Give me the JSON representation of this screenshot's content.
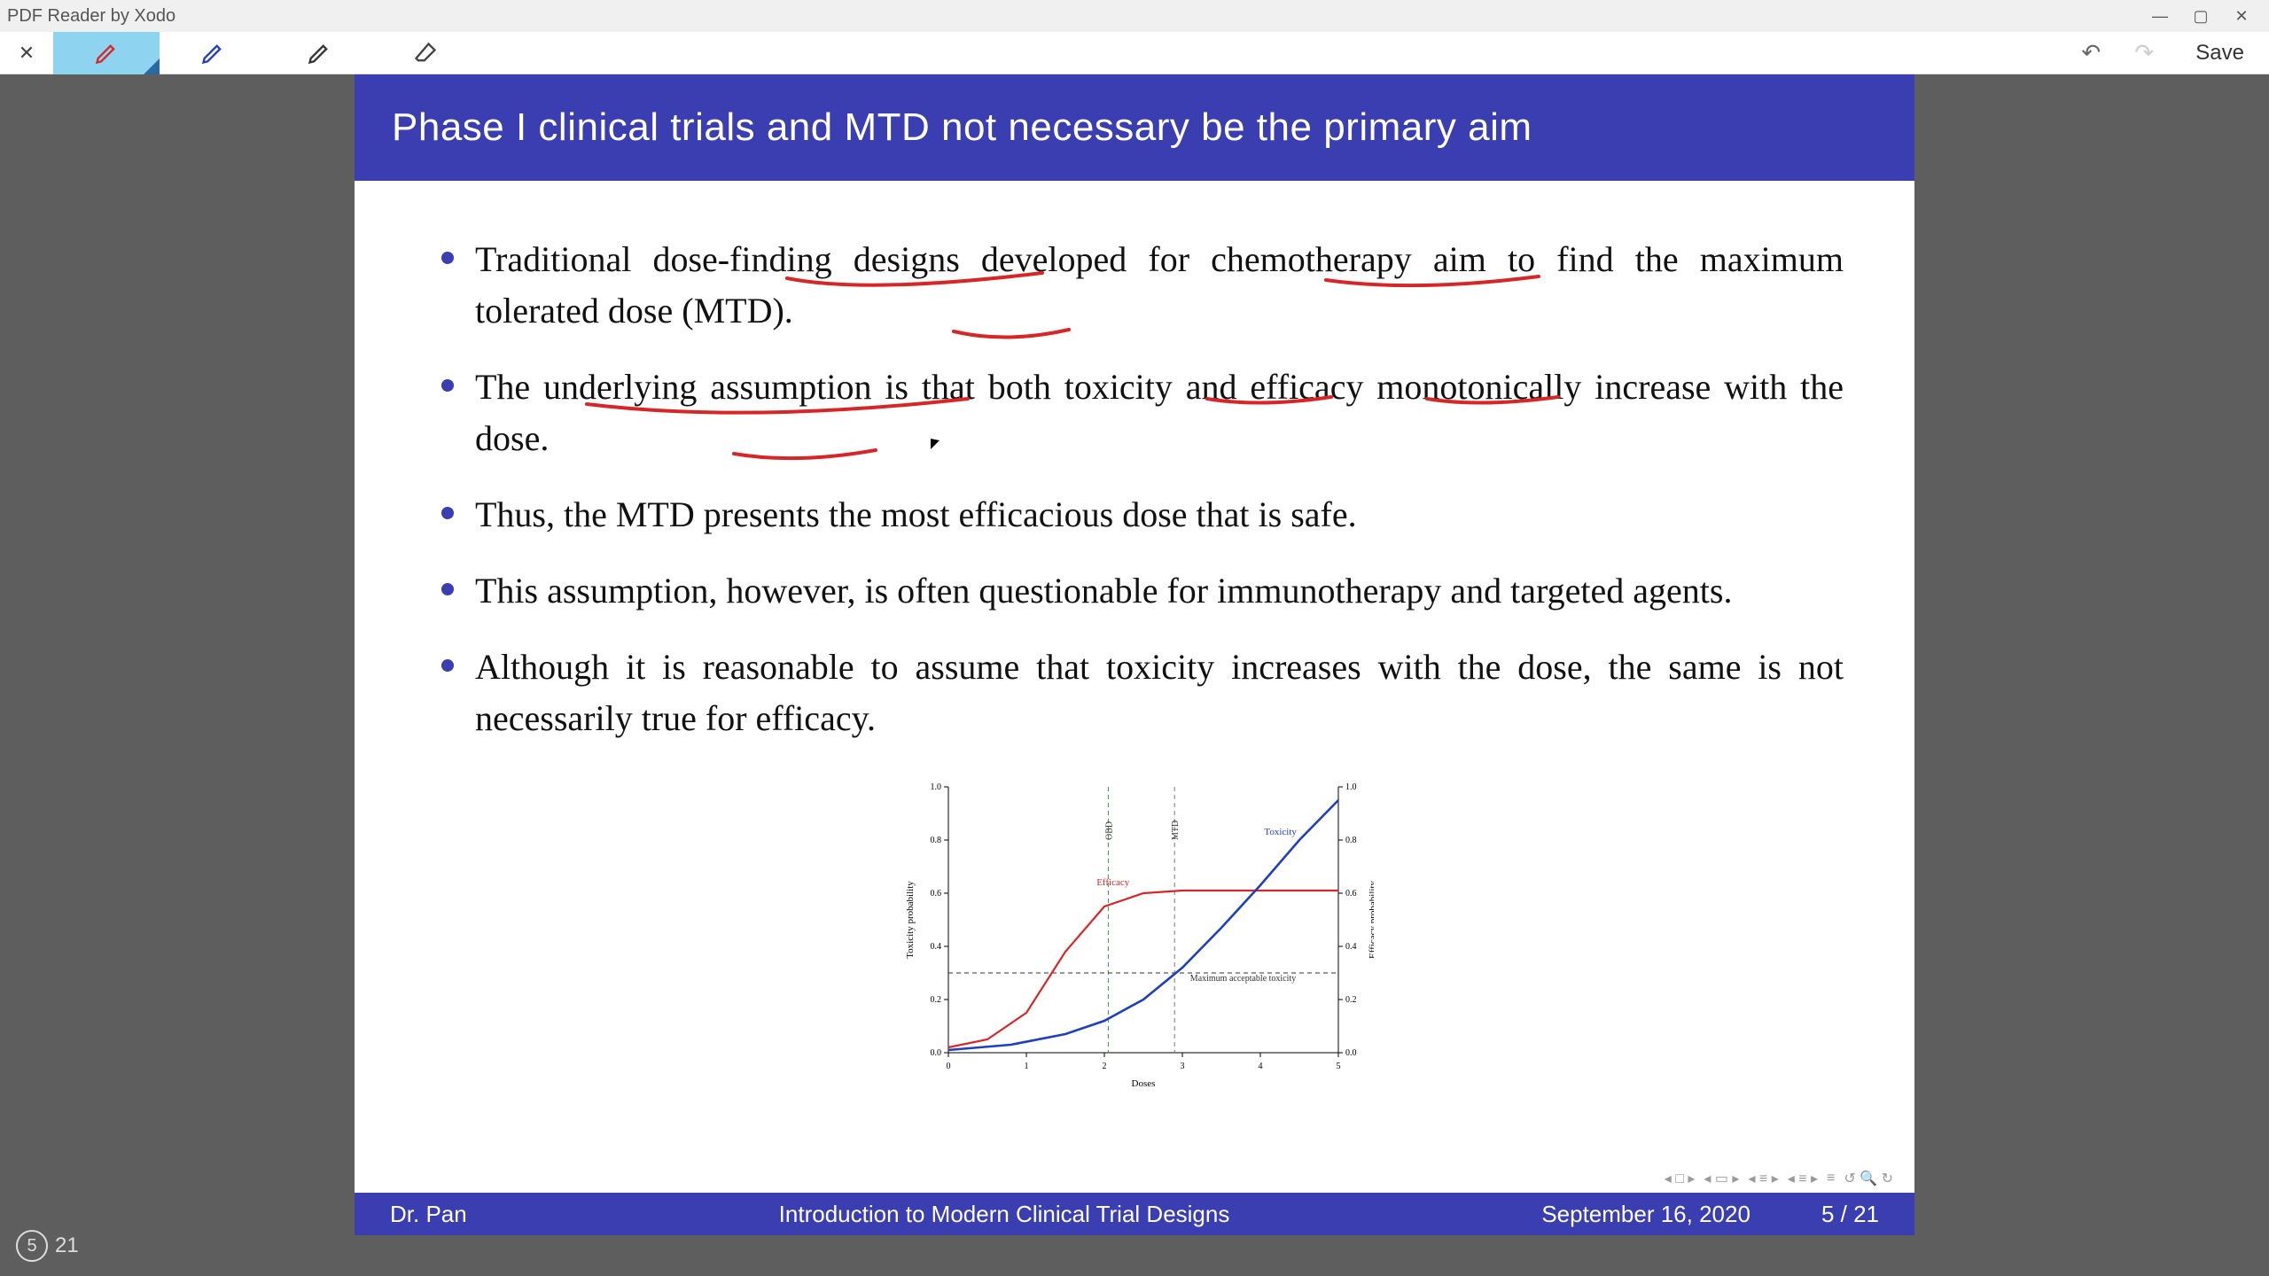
{
  "app": {
    "title": "PDF Reader by Xodo"
  },
  "toolbar": {
    "save_label": "Save"
  },
  "window_controls": {
    "min": "—",
    "max": "▢",
    "close": "✕"
  },
  "page_indicator": {
    "current": "5",
    "total": "21"
  },
  "slide": {
    "title": "Phase I clinical trials and MTD not necessary be the primary aim",
    "bullets": [
      "Traditional dose-finding designs developed for chemotherapy aim to find the maximum tolerated dose (MTD).",
      "The underlying assumption is that both toxicity and efficacy monotonically increase with the dose.",
      "Thus, the MTD presents the most efficacious dose that is safe.",
      "This assumption, however, is often questionable for immunotherapy and targeted agents.",
      "Although it is reasonable to assume that toxicity increases with the dose, the same is not necessarily true for efficacy."
    ],
    "footer": {
      "author": "Dr. Pan",
      "title": "Introduction to Modern Clinical Trial Designs",
      "date": "September 16, 2020",
      "page": "5 / 21"
    }
  },
  "chart": {
    "type": "line",
    "x_label": "Doses",
    "y_label_left": "Toxicity probability",
    "y_label_right": "Efficacy probability",
    "x_ticks": [
      "0",
      "1",
      "2",
      "3",
      "4",
      "5"
    ],
    "y_ticks": [
      "0.0",
      "0.2",
      "0.4",
      "0.6",
      "0.8",
      "1.0"
    ],
    "xlim": [
      0,
      5
    ],
    "ylim": [
      0,
      1
    ],
    "series": [
      {
        "name": "Efficacy",
        "color": "#d62728",
        "width": 2.2,
        "points": [
          [
            0,
            0.02
          ],
          [
            0.5,
            0.05
          ],
          [
            1,
            0.15
          ],
          [
            1.5,
            0.38
          ],
          [
            2,
            0.55
          ],
          [
            2.5,
            0.6
          ],
          [
            3,
            0.61
          ],
          [
            3.5,
            0.61
          ],
          [
            4,
            0.61
          ],
          [
            4.5,
            0.61
          ],
          [
            5,
            0.61
          ]
        ],
        "label_pos": [
          1.9,
          0.63
        ]
      },
      {
        "name": "Toxicity",
        "color": "#1f3fbf",
        "width": 2.6,
        "points": [
          [
            0,
            0.01
          ],
          [
            0.8,
            0.03
          ],
          [
            1.5,
            0.07
          ],
          [
            2,
            0.12
          ],
          [
            2.5,
            0.2
          ],
          [
            3,
            0.32
          ],
          [
            3.5,
            0.47
          ],
          [
            4,
            0.63
          ],
          [
            4.5,
            0.8
          ],
          [
            5,
            0.95
          ]
        ],
        "label_pos": [
          4.05,
          0.82
        ]
      }
    ],
    "ref_lines": [
      {
        "orient": "v",
        "value": 2.05,
        "label": "OBD",
        "style": "dash-green",
        "color": "#2a9d4a"
      },
      {
        "orient": "v",
        "value": 2.9,
        "label": "MTD",
        "style": "dash-gray",
        "color": "#777"
      },
      {
        "orient": "h",
        "value": 0.3,
        "label": "Maximum acceptable toxicity",
        "style": "dash-black",
        "color": "#333",
        "label_pos": [
          3.1,
          0.27
        ]
      }
    ],
    "background": "#ffffff",
    "axis_color": "#000",
    "tick_fontsize": 10,
    "label_fontsize": 11
  },
  "annotations": {
    "stroke_color": "#d62728",
    "stroke_width": 3
  }
}
